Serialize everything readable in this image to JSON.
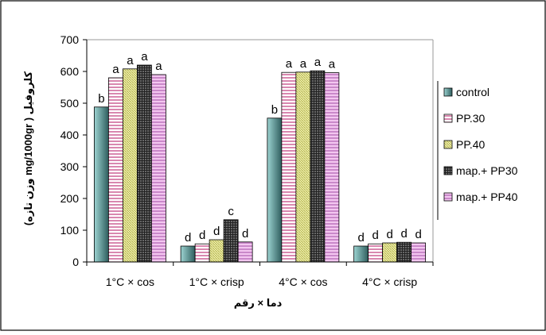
{
  "chart_data": {
    "type": "bar",
    "categories": [
      "1°C × cos",
      "1°C × crisp",
      "4°C × cos",
      "4°C × crisp"
    ],
    "series": [
      {
        "name": "control",
        "values": [
          488,
          50,
          453,
          50
        ],
        "labels": [
          "b",
          "d",
          "b",
          "d"
        ],
        "color": "#4f8f8f"
      },
      {
        "name": "PP.30",
        "values": [
          580,
          57,
          597,
          57
        ],
        "labels": [
          "a",
          "d",
          "a",
          "d"
        ],
        "color": "#e9a3c9"
      },
      {
        "name": "PP.40",
        "values": [
          608,
          70,
          598,
          60
        ],
        "labels": [
          "a",
          "d",
          "a",
          "d"
        ],
        "color": "#f2f2a6"
      },
      {
        "name": "map.+ PP30",
        "values": [
          620,
          133,
          602,
          62
        ],
        "labels": [
          "a",
          "c",
          "a",
          "d"
        ],
        "color": "#555555"
      },
      {
        "name": "map.+ PP40",
        "values": [
          590,
          63,
          596,
          60
        ],
        "labels": [
          "a",
          "d",
          "a",
          "d"
        ],
        "color": "#e6a6ea"
      }
    ],
    "ylim": [
      0,
      700
    ],
    "yticks": [
      0,
      100,
      200,
      300,
      400,
      500,
      600,
      700
    ],
    "ylabel": "کلروفیل ( mg/1000gr وزن تازه)",
    "xlabel": "دما × رقم",
    "legend_position": "right",
    "grid": false
  }
}
